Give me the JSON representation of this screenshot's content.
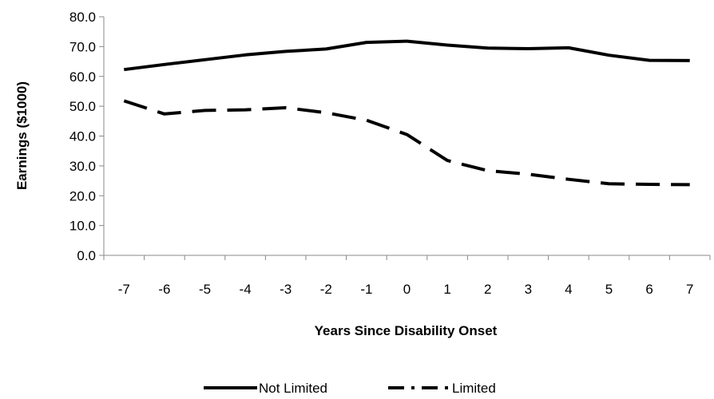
{
  "chart_data": {
    "type": "line",
    "title": "",
    "xlabel": "Years Since Disability Onset",
    "ylabel": "Earnings ($1000)",
    "x": [
      -7,
      -6,
      -5,
      -4,
      -3,
      -2,
      -1,
      0,
      1,
      2,
      3,
      4,
      5,
      6,
      7
    ],
    "ylim": [
      0,
      80
    ],
    "yticks": [
      "0.0",
      "10.0",
      "20.0",
      "30.0",
      "40.0",
      "50.0",
      "60.0",
      "70.0",
      "80.0"
    ],
    "grid": false,
    "legend_position": "bottom",
    "series": [
      {
        "name": "Not Limited",
        "style": "solid",
        "color": "#000000",
        "values": [
          62.3,
          64.0,
          65.6,
          67.2,
          68.4,
          69.2,
          71.4,
          71.8,
          70.5,
          69.5,
          69.3,
          69.6,
          67.1,
          65.4,
          65.3
        ]
      },
      {
        "name": "Limited",
        "style": "dashed",
        "color": "#000000",
        "values": [
          51.8,
          47.4,
          48.6,
          48.8,
          49.5,
          47.8,
          45.3,
          40.5,
          31.8,
          28.4,
          27.2,
          25.5,
          24.0,
          23.8,
          23.7
        ]
      }
    ]
  }
}
